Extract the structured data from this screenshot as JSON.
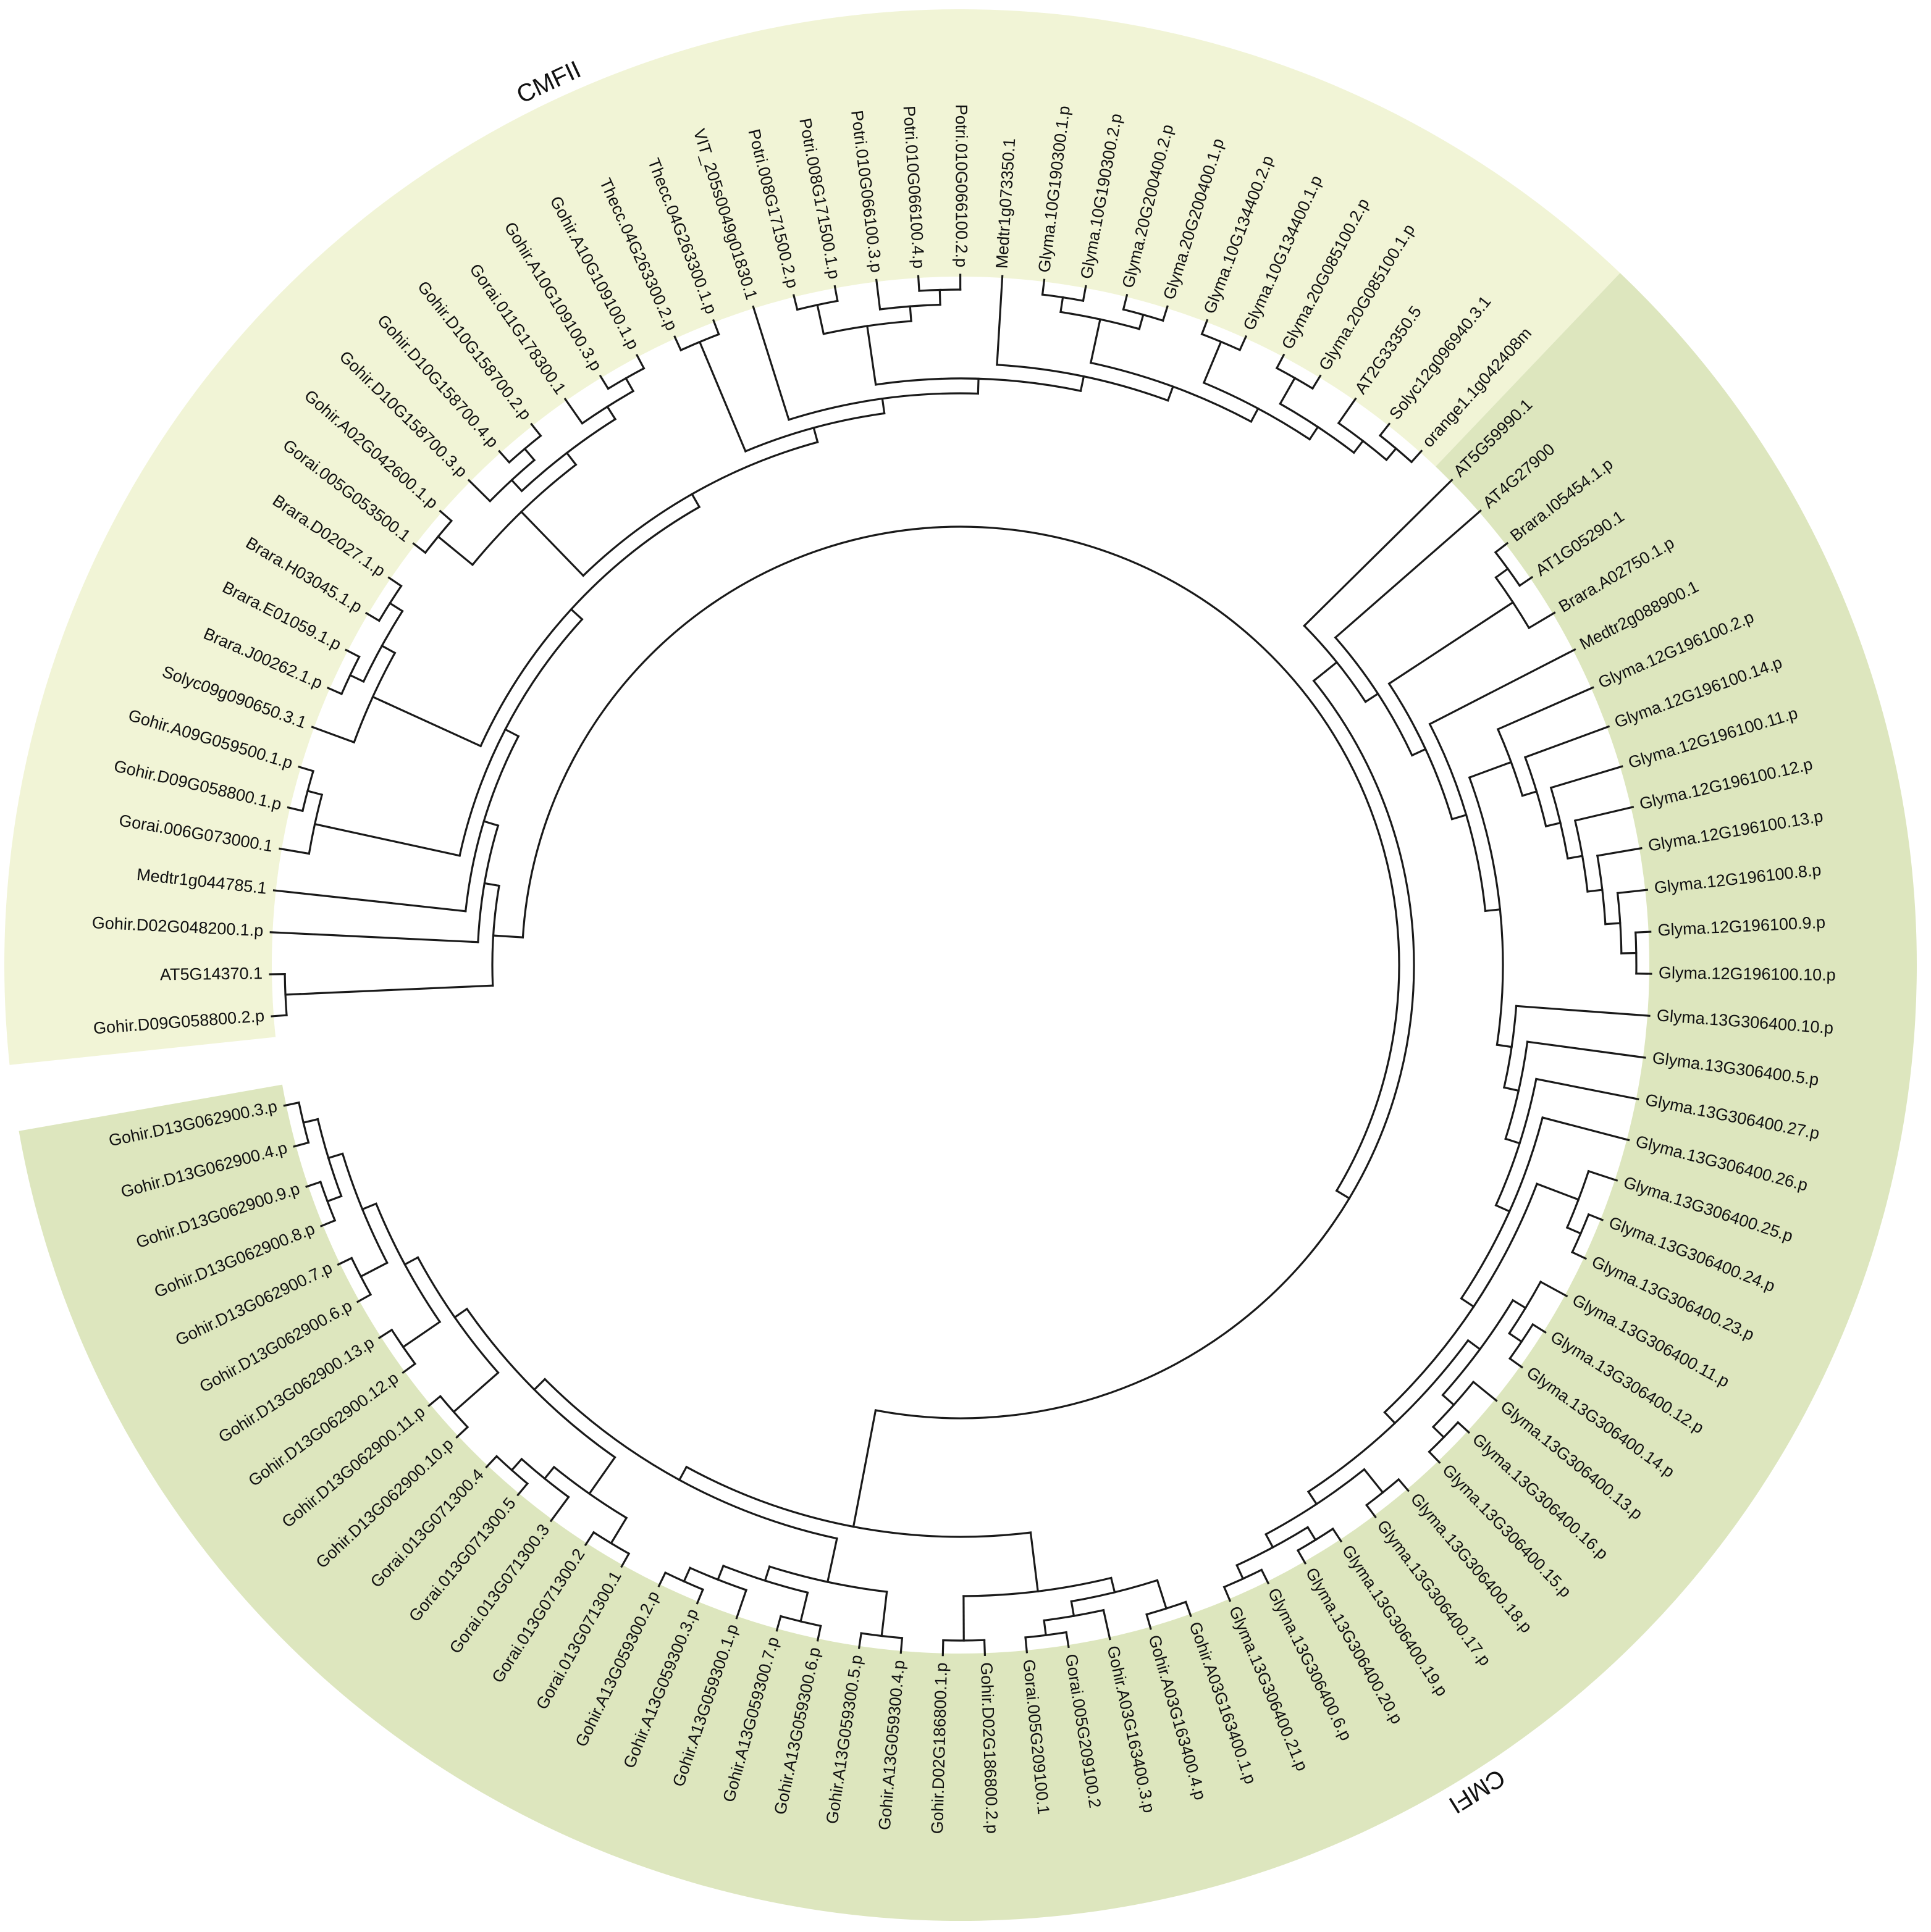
{
  "colors": {
    "cmfii_band": "#f1f4d6",
    "cmfi_band": "#dde6be",
    "branch": "#1a1a1a",
    "background": "#ffffff"
  },
  "clades": [
    {
      "name": "CMFII",
      "color_key": "cmfii_band"
    },
    {
      "name": "CMFI",
      "color_key": "cmfi_band"
    }
  ],
  "leaves": [
    {
      "label": "Gohir.D09G058800.2.p",
      "clade": "CMFII"
    },
    {
      "label": "AT5G14370.1",
      "clade": "CMFII"
    },
    {
      "label": "Gohir.D02G048200.1.p",
      "clade": "CMFII"
    },
    {
      "label": "Medtr1g044785.1",
      "clade": "CMFII"
    },
    {
      "label": "Gorai.006G073000.1",
      "clade": "CMFII"
    },
    {
      "label": "Gohir.D09G058800.1.p",
      "clade": "CMFII"
    },
    {
      "label": "Gohir.A09G059500.1.p",
      "clade": "CMFII"
    },
    {
      "label": "Solyc09g090650.3.1",
      "clade": "CMFII"
    },
    {
      "label": "Brara.J00262.1.p",
      "clade": "CMFII"
    },
    {
      "label": "Brara.E01059.1.p",
      "clade": "CMFII"
    },
    {
      "label": "Brara.H03045.1.p",
      "clade": "CMFII"
    },
    {
      "label": "Brara.D02027.1.p",
      "clade": "CMFII"
    },
    {
      "label": "Gorai.005G053500.1",
      "clade": "CMFII"
    },
    {
      "label": "Gohir.A02G042600.1.p",
      "clade": "CMFII"
    },
    {
      "label": "Gohir.D10G158700.3.p",
      "clade": "CMFII"
    },
    {
      "label": "Gohir.D10G158700.4.p",
      "clade": "CMFII"
    },
    {
      "label": "Gohir.D10G158700.2.p",
      "clade": "CMFII"
    },
    {
      "label": "Gorai.011G178300.1",
      "clade": "CMFII"
    },
    {
      "label": "Gohir.A10G109100.3.p",
      "clade": "CMFII"
    },
    {
      "label": "Gohir.A10G109100.1.p",
      "clade": "CMFII"
    },
    {
      "label": "Thecc.04G263300.2.p",
      "clade": "CMFII"
    },
    {
      "label": "Thecc.04G263300.1.p",
      "clade": "CMFII"
    },
    {
      "label": "VIT_205s0049g01830.1",
      "clade": "CMFII"
    },
    {
      "label": "Potri.008G171500.2.p",
      "clade": "CMFII"
    },
    {
      "label": "Potri.008G171500.1.p",
      "clade": "CMFII"
    },
    {
      "label": "Potri.010G066100.3.p",
      "clade": "CMFII"
    },
    {
      "label": "Potri.010G066100.4.p",
      "clade": "CMFII"
    },
    {
      "label": "Potri.010G066100.2.p",
      "clade": "CMFII"
    },
    {
      "label": "Medtr1g073350.1",
      "clade": "CMFII"
    },
    {
      "label": "Glyma.10G190300.1.p",
      "clade": "CMFII"
    },
    {
      "label": "Glyma.10G190300.2.p",
      "clade": "CMFII"
    },
    {
      "label": "Glyma.20G200400.2.p",
      "clade": "CMFII"
    },
    {
      "label": "Glyma.20G200400.1.p",
      "clade": "CMFII"
    },
    {
      "label": "Glyma.10G134400.2.p",
      "clade": "CMFII"
    },
    {
      "label": "Glyma.10G134400.1.p",
      "clade": "CMFII"
    },
    {
      "label": "Glyma.20G085100.2.p",
      "clade": "CMFII"
    },
    {
      "label": "Glyma.20G085100.1.p",
      "clade": "CMFII"
    },
    {
      "label": "AT2G33350.5",
      "clade": "CMFII"
    },
    {
      "label": "Solyc12g096940.3.1",
      "clade": "CMFII"
    },
    {
      "label": "orange1.1g042408m",
      "clade": "CMFII"
    },
    {
      "label": "AT5G59990.1",
      "clade": "CMFI"
    },
    {
      "label": "AT4G27900",
      "clade": "CMFI"
    },
    {
      "label": "Brara.I05454.1.p",
      "clade": "CMFI"
    },
    {
      "label": "AT1G05290.1",
      "clade": "CMFI"
    },
    {
      "label": "Brara.A02750.1.p",
      "clade": "CMFI"
    },
    {
      "label": "Medtr2g088900.1",
      "clade": "CMFI"
    },
    {
      "label": "Glyma.12G196100.2.p",
      "clade": "CMFI"
    },
    {
      "label": "Glyma.12G196100.14.p",
      "clade": "CMFI"
    },
    {
      "label": "Glyma.12G196100.11.p",
      "clade": "CMFI"
    },
    {
      "label": "Glyma.12G196100.12.p",
      "clade": "CMFI"
    },
    {
      "label": "Glyma.12G196100.13.p",
      "clade": "CMFI"
    },
    {
      "label": "Glyma.12G196100.8.p",
      "clade": "CMFI"
    },
    {
      "label": "Glyma.12G196100.9.p",
      "clade": "CMFI"
    },
    {
      "label": "Glyma.12G196100.10.p",
      "clade": "CMFI"
    },
    {
      "label": "Glyma.13G306400.10.p",
      "clade": "CMFI"
    },
    {
      "label": "Glyma.13G306400.5.p",
      "clade": "CMFI"
    },
    {
      "label": "Glyma.13G306400.27.p",
      "clade": "CMFI"
    },
    {
      "label": "Glyma.13G306400.26.p",
      "clade": "CMFI"
    },
    {
      "label": "Glyma.13G306400.25.p",
      "clade": "CMFI"
    },
    {
      "label": "Glyma.13G306400.24.p",
      "clade": "CMFI"
    },
    {
      "label": "Glyma.13G306400.23.p",
      "clade": "CMFI"
    },
    {
      "label": "Glyma.13G306400.11.p",
      "clade": "CMFI"
    },
    {
      "label": "Glyma.13G306400.12.p",
      "clade": "CMFI"
    },
    {
      "label": "Glyma.13G306400.14.p",
      "clade": "CMFI"
    },
    {
      "label": "Glyma.13G306400.13.p",
      "clade": "CMFI"
    },
    {
      "label": "Glyma.13G306400.16.p",
      "clade": "CMFI"
    },
    {
      "label": "Glyma.13G306400.15.p",
      "clade": "CMFI"
    },
    {
      "label": "Glyma.13G306400.18.p",
      "clade": "CMFI"
    },
    {
      "label": "Glyma.13G306400.17.p",
      "clade": "CMFI"
    },
    {
      "label": "Glyma.13G306400.19.p",
      "clade": "CMFI"
    },
    {
      "label": "Glyma.13G306400.20.p",
      "clade": "CMFI"
    },
    {
      "label": "Glyma.13G306400.6.p",
      "clade": "CMFI"
    },
    {
      "label": "Glyma.13G306400.21.p",
      "clade": "CMFI"
    },
    {
      "label": "Gohir.A03G163400.1.p",
      "clade": "CMFI"
    },
    {
      "label": "Gohir.A03G163400.4.p",
      "clade": "CMFI"
    },
    {
      "label": "Gohir.A03G163400.3.p",
      "clade": "CMFI"
    },
    {
      "label": "Gorai.005G209100.2",
      "clade": "CMFI"
    },
    {
      "label": "Gorai.005G209100.1",
      "clade": "CMFI"
    },
    {
      "label": "Gohir.D02G186800.2.p",
      "clade": "CMFI"
    },
    {
      "label": "Gohir.D02G186800.1.p",
      "clade": "CMFI"
    },
    {
      "label": "Gohir.A13G059300.4.p",
      "clade": "CMFI"
    },
    {
      "label": "Gohir.A13G059300.5.p",
      "clade": "CMFI"
    },
    {
      "label": "Gohir.A13G059300.6.p",
      "clade": "CMFI"
    },
    {
      "label": "Gohir.A13G059300.7.p",
      "clade": "CMFI"
    },
    {
      "label": "Gohir.A13G059300.1.p",
      "clade": "CMFI"
    },
    {
      "label": "Gohir.A13G059300.3.p",
      "clade": "CMFI"
    },
    {
      "label": "Gohir.A13G059300.2.p",
      "clade": "CMFI"
    },
    {
      "label": "Gorai.013G071300.1",
      "clade": "CMFI"
    },
    {
      "label": "Gorai.013G071300.2",
      "clade": "CMFI"
    },
    {
      "label": "Gorai.013G071300.3",
      "clade": "CMFI"
    },
    {
      "label": "Gorai.013G071300.5",
      "clade": "CMFI"
    },
    {
      "label": "Gorai.013G071300.4",
      "clade": "CMFI"
    },
    {
      "label": "Gohir.D13G062900.10.p",
      "clade": "CMFI"
    },
    {
      "label": "Gohir.D13G062900.11.p",
      "clade": "CMFI"
    },
    {
      "label": "Gohir.D13G062900.12.p",
      "clade": "CMFI"
    },
    {
      "label": "Gohir.D13G062900.13.p",
      "clade": "CMFI"
    },
    {
      "label": "Gohir.D13G062900.6.p",
      "clade": "CMFI"
    },
    {
      "label": "Gohir.D13G062900.7.p",
      "clade": "CMFI"
    },
    {
      "label": "Gohir.D13G062900.8.p",
      "clade": "CMFI"
    },
    {
      "label": "Gohir.D13G062900.9.p",
      "clade": "CMFI"
    },
    {
      "label": "Gohir.D13G062900.4.p",
      "clade": "CMFI"
    },
    {
      "label": "Gohir.D13G062900.3.p",
      "clade": "CMFI"
    }
  ],
  "tree": [
    [
      [
        [
          "Gohir.D09G058800.2.p",
          "AT5G14370.1"
        ]
      ],
      [
        "Gohir.D02G048200.1.p",
        [
          "Medtr1g044785.1",
          [
            [
              [
                "Gorai.006G073000.1",
                [
                  "Gohir.D09G058800.1.p",
                  "Gohir.A09G059500.1.p"
                ]
              ]
            ],
            [
              [
                [
                  "Solyc09g090650.3.1",
                  [
                    [
                      "Brara.J00262.1.p",
                      "Brara.E01059.1.p"
                    ],
                    [
                      "Brara.H03045.1.p",
                      "Brara.D02027.1.p"
                    ]
                  ]
                ]
              ],
              [
                [
                  [
                    [
                      "Gorai.005G053500.1",
                      "Gohir.A02G042600.1.p"
                    ]
                  ],
                  [
                    [
                      "Gohir.D10G158700.3.p",
                      [
                        "Gohir.D10G158700.4.p",
                        "Gohir.D10G158700.2.p"
                      ]
                    ],
                    [
                      "Gorai.011G178300.1",
                      [
                        "Gohir.A10G109100.3.p",
                        "Gohir.A10G109100.1.p"
                      ]
                    ]
                  ]
                ],
                [
                  [
                    [
                      "Thecc.04G263300.2.p",
                      "Thecc.04G263300.1.p"
                    ]
                  ],
                  [
                    "VIT_205s0049g01830.1",
                    [
                      [
                        [
                          "Potri.008G171500.2.p",
                          "Potri.008G171500.1.p"
                        ],
                        [
                          "Potri.010G066100.3.p",
                          [
                            "Potri.010G066100.4.p",
                            "Potri.010G066100.2.p"
                          ]
                        ]
                      ],
                      [
                        "Medtr1g073350.1",
                        [
                          [
                            [
                              "Glyma.10G190300.1.p",
                              "Glyma.10G190300.2.p"
                            ],
                            [
                              "Glyma.20G200400.2.p",
                              "Glyma.20G200400.1.p"
                            ]
                          ],
                          [
                            [
                              "Glyma.10G134400.2.p",
                              "Glyma.10G134400.1.p"
                            ],
                            [
                              [
                                "Glyma.20G085100.2.p",
                                "Glyma.20G085100.1.p"
                              ],
                              [
                                "AT2G33350.5",
                                [
                                  "Solyc12g096940.3.1",
                                  "orange1.1g042408m"
                                ]
                              ]
                            ]
                          ]
                        ]
                      ]
                    ]
                  ]
                ]
              ]
            ]
          ]
        ]
      ]
    ],
    [
      [
        [
          "AT5G59990.1",
          [
            "AT4G27900",
            [
              [
                [
                  "Brara.I05454.1.p",
                  "AT1G05290.1"
                ],
                "Brara.A02750.1.p"
              ],
              [
                "Medtr2g088900.1",
                [
                  [
                    "Glyma.12G196100.2.p",
                    [
                      "Glyma.12G196100.14.p",
                      [
                        "Glyma.12G196100.11.p",
                        [
                          "Glyma.12G196100.12.p",
                          [
                            "Glyma.12G196100.13.p",
                            [
                              "Glyma.12G196100.8.p",
                              [
                                "Glyma.12G196100.9.p",
                                "Glyma.12G196100.10.p"
                              ]
                            ]
                          ]
                        ]
                      ]
                    ]
                  ],
                  [
                    "Glyma.13G306400.10.p",
                    [
                      "Glyma.13G306400.5.p",
                      [
                        "Glyma.13G306400.27.p",
                        [
                          "Glyma.13G306400.26.p",
                          [
                            [
                              "Glyma.13G306400.25.p",
                              [
                                "Glyma.13G306400.24.p",
                                "Glyma.13G306400.23.p"
                              ]
                            ],
                            [
                              [
                                [
                                  "Glyma.13G306400.11.p",
                                  [
                                    "Glyma.13G306400.12.p",
                                    "Glyma.13G306400.14.p"
                                  ]
                                ],
                                [
                                  "Glyma.13G306400.13.p",
                                  [
                                    "Glyma.13G306400.16.p",
                                    "Glyma.13G306400.15.p"
                                  ]
                                ]
                              ],
                              [
                                [
                                  "Glyma.13G306400.18.p",
                                  "Glyma.13G306400.17.p"
                                ],
                                [
                                  [
                                    "Glyma.13G306400.19.p",
                                    "Glyma.13G306400.20.p"
                                  ],
                                  [
                                    "Glyma.13G306400.6.p",
                                    "Glyma.13G306400.21.p"
                                  ]
                                ]
                              ]
                            ]
                          ]
                        ]
                      ]
                    ]
                  ]
                ]
              ]
            ]
          ]
        ]
      ],
      [
        [
          [
            [
              [
                "Gohir.A03G163400.1.p",
                "Gohir.A03G163400.4.p"
              ]
            ],
            [
              "Gohir.A03G163400.3.p",
              [
                "Gorai.005G209100.2",
                "Gorai.005G209100.1"
              ]
            ]
          ],
          [
            "Gohir.D02G186800.2.p",
            "Gohir.D02G186800.1.p"
          ]
        ],
        [
          [
            [
              "Gohir.A13G059300.4.p",
              "Gohir.A13G059300.5.p"
            ],
            [
              [
                "Gohir.A13G059300.6.p",
                "Gohir.A13G059300.7.p"
              ],
              [
                "Gohir.A13G059300.1.p",
                [
                  "Gohir.A13G059300.3.p",
                  "Gohir.A13G059300.2.p"
                ]
              ]
            ]
          ],
          [
            [
              [
                "Gorai.013G071300.1",
                "Gorai.013G071300.2"
              ],
              [
                "Gorai.013G071300.3",
                [
                  "Gorai.013G071300.5",
                  "Gorai.013G071300.4"
                ]
              ]
            ],
            [
              [
                "Gohir.D13G062900.10.p",
                "Gohir.D13G062900.11.p"
              ],
              [
                [
                  "Gohir.D13G062900.12.p",
                  "Gohir.D13G062900.13.p"
                ],
                [
                  [
                    "Gohir.D13G062900.6.p",
                    "Gohir.D13G062900.7.p"
                  ],
                  [
                    [
                      "Gohir.D13G062900.8.p",
                      "Gohir.D13G062900.9.p"
                    ],
                    [
                      "Gohir.D13G062900.4.p",
                      "Gohir.D13G062900.3.p"
                    ]
                  ]
                ]
              ]
            ]
          ]
        ]
      ]
    ]
  ]
}
